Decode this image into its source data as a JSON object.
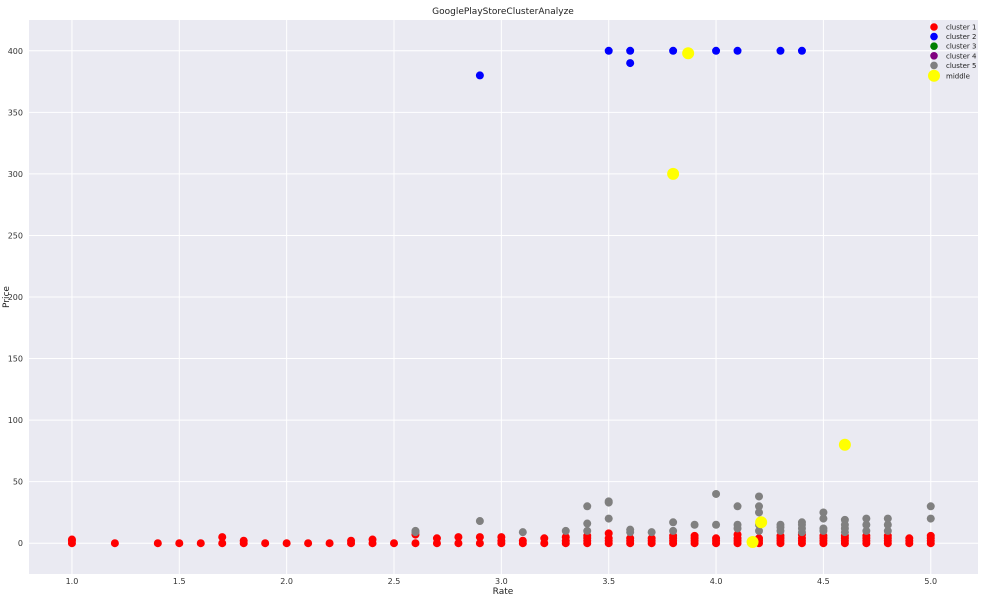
{
  "chart_data": {
    "type": "scatter",
    "title": "GooglePlayStoreClusterAnalyze",
    "xlabel": "Rate",
    "ylabel": "Price",
    "xlim": [
      0.8,
      5.22
    ],
    "ylim": [
      -25,
      425
    ],
    "xticks": [
      "1.0",
      "1.5",
      "2.0",
      "2.5",
      "3.0",
      "3.5",
      "4.0",
      "4.5",
      "5.0"
    ],
    "yticks": [
      "0",
      "50",
      "100",
      "150",
      "200",
      "250",
      "300",
      "350",
      "400"
    ],
    "grid": true,
    "legend_position": "top-right",
    "colors": {
      "background": "#eaeaf2",
      "grid": "#ffffff",
      "cluster1": "#ff0000",
      "cluster2": "#0000ff",
      "cluster3": "#008000",
      "cluster4": "#800080",
      "cluster5": "#808080",
      "middle": "#ffff00"
    },
    "series": [
      {
        "name": "cluster 1",
        "color": "#ff0000",
        "points": [
          [
            1.0,
            0
          ],
          [
            1.0,
            2
          ],
          [
            1.0,
            3
          ],
          [
            1.2,
            0
          ],
          [
            1.4,
            0
          ],
          [
            1.5,
            0
          ],
          [
            1.6,
            0
          ],
          [
            1.7,
            0
          ],
          [
            1.7,
            5
          ],
          [
            1.8,
            0
          ],
          [
            1.8,
            2
          ],
          [
            1.9,
            0
          ],
          [
            2.0,
            0
          ],
          [
            2.1,
            0
          ],
          [
            2.2,
            0
          ],
          [
            2.3,
            0
          ],
          [
            2.3,
            2
          ],
          [
            2.4,
            0
          ],
          [
            2.4,
            3
          ],
          [
            2.5,
            0
          ],
          [
            2.6,
            0
          ],
          [
            2.6,
            7
          ],
          [
            2.7,
            0
          ],
          [
            2.7,
            4
          ],
          [
            2.8,
            0
          ],
          [
            2.8,
            5
          ],
          [
            2.9,
            0
          ],
          [
            2.9,
            5
          ],
          [
            3.0,
            0
          ],
          [
            3.0,
            2
          ],
          [
            3.0,
            5
          ],
          [
            3.1,
            0
          ],
          [
            3.1,
            2
          ],
          [
            3.2,
            0
          ],
          [
            3.2,
            4
          ],
          [
            3.3,
            0
          ],
          [
            3.3,
            2
          ],
          [
            3.3,
            5
          ],
          [
            3.4,
            0
          ],
          [
            3.4,
            2
          ],
          [
            3.4,
            4
          ],
          [
            3.4,
            6
          ],
          [
            3.5,
            0
          ],
          [
            3.5,
            2
          ],
          [
            3.5,
            4
          ],
          [
            3.5,
            8
          ],
          [
            3.6,
            0
          ],
          [
            3.6,
            2
          ],
          [
            3.6,
            4
          ],
          [
            3.7,
            0
          ],
          [
            3.7,
            2
          ],
          [
            3.7,
            4
          ],
          [
            3.8,
            0
          ],
          [
            3.8,
            2
          ],
          [
            3.8,
            4
          ],
          [
            3.8,
            6
          ],
          [
            3.9,
            0
          ],
          [
            3.9,
            2
          ],
          [
            3.9,
            4
          ],
          [
            3.9,
            6
          ],
          [
            4.0,
            0
          ],
          [
            4.0,
            2
          ],
          [
            4.0,
            4
          ],
          [
            4.1,
            0
          ],
          [
            4.1,
            2
          ],
          [
            4.1,
            4
          ],
          [
            4.1,
            7
          ],
          [
            4.2,
            0
          ],
          [
            4.2,
            2
          ],
          [
            4.2,
            4
          ],
          [
            4.3,
            0
          ],
          [
            4.3,
            2
          ],
          [
            4.3,
            4
          ],
          [
            4.3,
            6
          ],
          [
            4.4,
            0
          ],
          [
            4.4,
            2
          ],
          [
            4.4,
            4
          ],
          [
            4.4,
            7
          ],
          [
            4.5,
            0
          ],
          [
            4.5,
            2
          ],
          [
            4.5,
            4
          ],
          [
            4.5,
            6
          ],
          [
            4.6,
            0
          ],
          [
            4.6,
            2
          ],
          [
            4.6,
            4
          ],
          [
            4.6,
            6
          ],
          [
            4.7,
            0
          ],
          [
            4.7,
            2
          ],
          [
            4.7,
            4
          ],
          [
            4.7,
            6
          ],
          [
            4.8,
            0
          ],
          [
            4.8,
            2
          ],
          [
            4.8,
            4
          ],
          [
            4.8,
            6
          ],
          [
            4.9,
            0
          ],
          [
            4.9,
            2
          ],
          [
            4.9,
            4
          ],
          [
            5.0,
            0
          ],
          [
            5.0,
            2
          ],
          [
            5.0,
            4
          ],
          [
            5.0,
            6
          ]
        ]
      },
      {
        "name": "cluster 2",
        "color": "#0000ff",
        "points": [
          [
            2.9,
            380
          ],
          [
            3.5,
            400
          ],
          [
            3.6,
            400
          ],
          [
            3.6,
            390
          ],
          [
            3.8,
            400
          ],
          [
            4.0,
            400
          ],
          [
            4.1,
            400
          ],
          [
            4.3,
            400
          ],
          [
            4.4,
            400
          ]
        ]
      },
      {
        "name": "cluster 3",
        "color": "#008000",
        "points": []
      },
      {
        "name": "cluster 4",
        "color": "#800080",
        "points": []
      },
      {
        "name": "cluster 5",
        "color": "#808080",
        "points": [
          [
            2.6,
            9
          ],
          [
            2.6,
            10
          ],
          [
            2.9,
            18
          ],
          [
            3.1,
            9
          ],
          [
            3.3,
            10
          ],
          [
            3.4,
            10
          ],
          [
            3.4,
            16
          ],
          [
            3.4,
            30
          ],
          [
            3.5,
            20
          ],
          [
            3.5,
            33
          ],
          [
            3.5,
            34
          ],
          [
            3.6,
            9
          ],
          [
            3.6,
            11
          ],
          [
            3.7,
            9
          ],
          [
            3.8,
            10
          ],
          [
            3.8,
            17
          ],
          [
            3.9,
            15
          ],
          [
            4.0,
            15
          ],
          [
            4.0,
            40
          ],
          [
            4.1,
            12
          ],
          [
            4.1,
            15
          ],
          [
            4.1,
            30
          ],
          [
            4.2,
            10
          ],
          [
            4.2,
            15
          ],
          [
            4.2,
            25
          ],
          [
            4.2,
            30
          ],
          [
            4.2,
            38
          ],
          [
            4.3,
            10
          ],
          [
            4.3,
            13
          ],
          [
            4.3,
            15
          ],
          [
            4.4,
            9
          ],
          [
            4.4,
            12
          ],
          [
            4.4,
            15
          ],
          [
            4.4,
            17
          ],
          [
            4.5,
            10
          ],
          [
            4.5,
            12
          ],
          [
            4.5,
            20
          ],
          [
            4.5,
            25
          ],
          [
            4.6,
            9
          ],
          [
            4.6,
            12
          ],
          [
            4.6,
            15
          ],
          [
            4.6,
            19
          ],
          [
            4.7,
            10
          ],
          [
            4.7,
            15
          ],
          [
            4.7,
            20
          ],
          [
            4.8,
            10
          ],
          [
            4.8,
            15
          ],
          [
            4.8,
            20
          ],
          [
            5.0,
            20
          ],
          [
            5.0,
            30
          ]
        ]
      },
      {
        "name": "middle",
        "color": "#ffff00",
        "points": [
          [
            3.87,
            398
          ],
          [
            3.8,
            300
          ],
          [
            4.6,
            80
          ],
          [
            4.21,
            17
          ],
          [
            4.17,
            1
          ]
        ]
      }
    ]
  }
}
